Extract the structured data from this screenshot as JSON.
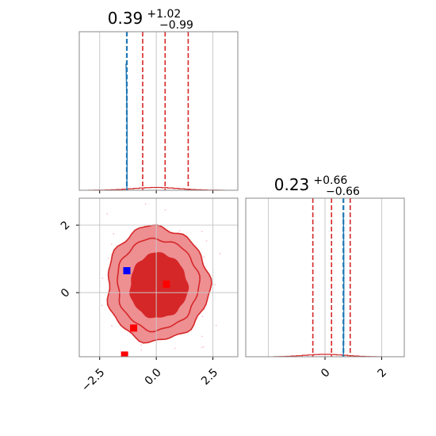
{
  "chart_data": [
    {
      "type": "histogram",
      "panel": "marginal-1",
      "title": {
        "value": "0.39",
        "plus": "+1.02",
        "minus": "−0.99"
      },
      "xlim": [
        -3.4,
        3.6
      ],
      "hist_color": "#d62728",
      "quantile_color": "#d62728",
      "truth_color": "#1f77b4",
      "quantile_lines": [
        -0.6,
        0.39,
        1.41
      ],
      "truth_line": -1.3,
      "grid": true
    },
    {
      "type": "contour",
      "panel": "joint",
      "xlim": [
        -3.4,
        3.6
      ],
      "ylim": [
        -1.9,
        2.8
      ],
      "xticks": [
        -2.5,
        0.0,
        2.5
      ],
      "xtick_labels": [
        "−2.5",
        "0.0",
        "2.5"
      ],
      "yticks": [
        0,
        2
      ],
      "ytick_labels": [
        "0",
        "2"
      ],
      "fill_inner": "#d62728",
      "fill_outer": "#ee8f92",
      "line_color": "#d62728",
      "points": [
        {
          "x": -1.3,
          "y": 0.65,
          "color": "#0000ff"
        },
        {
          "x": 0.45,
          "y": 0.25,
          "color": "#ff0000"
        },
        {
          "x": -1.0,
          "y": -1.05,
          "color": "#ff0000"
        },
        {
          "x": -1.4,
          "y": -1.85,
          "color": "#ff0000"
        }
      ],
      "grid": true
    },
    {
      "type": "histogram",
      "panel": "marginal-2",
      "title": {
        "value": "0.23",
        "plus": "+0.66",
        "minus": "−0.66"
      },
      "xlim": [
        -2.8,
        2.8
      ],
      "xticks": [
        0,
        2
      ],
      "xtick_labels": [
        "0",
        "2"
      ],
      "hist_color": "#d62728",
      "quantile_color": "#d62728",
      "truth_color": "#1f77b4",
      "quantile_lines": [
        -0.43,
        0.23,
        0.89
      ],
      "truth_line": 0.65,
      "grid": true
    }
  ]
}
